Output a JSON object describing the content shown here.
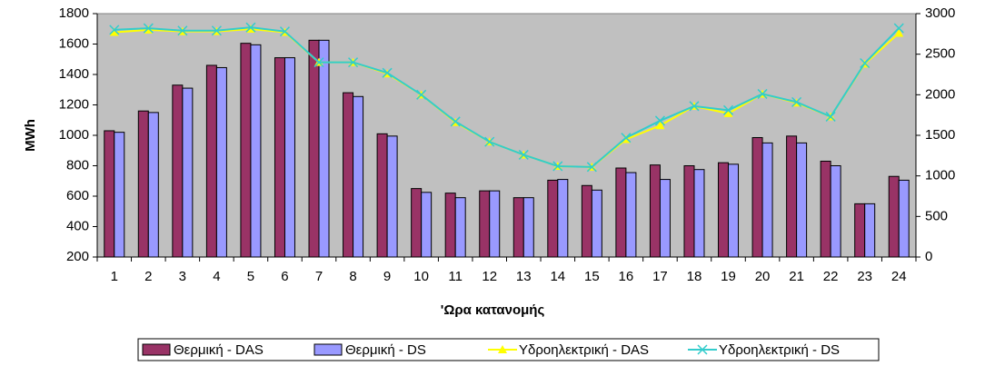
{
  "chart_data": {
    "type": "bar-line",
    "x_label": "'Ωρα κατανομής",
    "y_label": "MWh",
    "categories": [
      "1",
      "2",
      "3",
      "4",
      "5",
      "6",
      "7",
      "8",
      "9",
      "10",
      "11",
      "12",
      "13",
      "14",
      "15",
      "16",
      "17",
      "18",
      "19",
      "20",
      "21",
      "22",
      "23",
      "24"
    ],
    "series": [
      {
        "name": "Θερμική - DAS",
        "type": "bar",
        "color": "#993366",
        "values": [
          1030,
          1160,
          1330,
          1460,
          1605,
          1510,
          1625,
          1280,
          1010,
          650,
          620,
          635,
          590,
          705,
          670,
          785,
          805,
          800,
          820,
          985,
          995,
          830,
          550,
          730
        ]
      },
      {
        "name": "Θερμική - DS",
        "type": "bar",
        "color": "#9999ff",
        "values": [
          1020,
          1150,
          1310,
          1445,
          1595,
          1510,
          1625,
          1255,
          995,
          625,
          590,
          635,
          590,
          710,
          640,
          755,
          710,
          775,
          810,
          950,
          950,
          800,
          550,
          705
        ]
      },
      {
        "name": "Υδροηλεκτρική - DAS",
        "type": "line",
        "axis": "y2",
        "marker": "triangle",
        "color": "#ffff00",
        "values": [
          2770,
          2800,
          2780,
          2780,
          2810,
          2770,
          2400,
          2400,
          2260,
          2000,
          1660,
          1420,
          1260,
          1120,
          1110,
          1450,
          1620,
          1860,
          1770,
          2010,
          1900,
          1730,
          2380,
          2760
        ]
      },
      {
        "name": "Υδροηλεκτρική - DS",
        "type": "line",
        "axis": "y2",
        "marker": "x",
        "color": "#33cccc",
        "values": [
          2800,
          2820,
          2790,
          2790,
          2830,
          2780,
          2400,
          2400,
          2270,
          2000,
          1670,
          1420,
          1260,
          1120,
          1110,
          1470,
          1680,
          1860,
          1810,
          2010,
          1910,
          1730,
          2390,
          2820
        ]
      }
    ],
    "ylim": [
      200,
      1800
    ],
    "yticks": [
      200,
      400,
      600,
      800,
      1000,
      1200,
      1400,
      1600,
      1800
    ],
    "y2lim": [
      0,
      3000
    ],
    "y2ticks": [
      0,
      500,
      1000,
      1500,
      2000,
      2500,
      3000
    ],
    "plot_background": "#c0c0c0"
  }
}
